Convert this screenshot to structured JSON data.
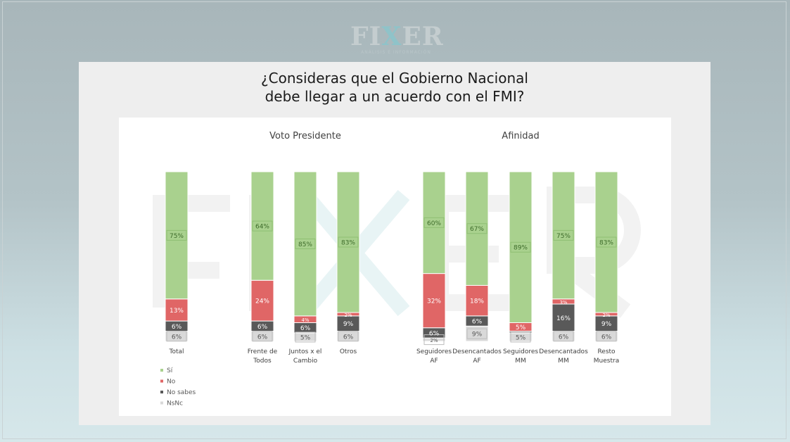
{
  "logo": {
    "text_a": "FI",
    "text_x": "X",
    "text_b": "ER",
    "subtitle": "ANÁLISIS E INFORMACIÓN"
  },
  "title_lines": [
    "¿Consideras que el Gobierno Nacional",
    "debe llegar a un acuerdo con el FMI?"
  ],
  "colors": {
    "si": "#a9d18e",
    "no": "#e06666",
    "no_sabes": "#595959",
    "nsnc": "#d9d9d9"
  },
  "chart_data": {
    "type": "bar",
    "stacked": true,
    "title": "¿Consideras que el Gobierno Nacional debe llegar a un acuerdo con el FMI?",
    "groups": [
      {
        "label": "",
        "categories": [
          0
        ]
      },
      {
        "label": "Voto Presidente",
        "categories": [
          1,
          2,
          3
        ]
      },
      {
        "label": "Afinidad",
        "categories": [
          4,
          5,
          6,
          7,
          8
        ]
      }
    ],
    "categories": [
      [
        "Total"
      ],
      [
        "Frente de",
        "Todos"
      ],
      [
        "Juntos x el",
        "Cambio"
      ],
      [
        "Otros"
      ],
      [
        "Seguidores",
        "AF"
      ],
      [
        "Desencantados",
        "AF"
      ],
      [
        "Seguidores",
        "MM"
      ],
      [
        "Desencantados",
        "MM"
      ],
      [
        "Resto",
        "Muestra"
      ]
    ],
    "series": [
      {
        "name": "Sí",
        "key": "si",
        "values": [
          75,
          64,
          85,
          83,
          60,
          67,
          89,
          75,
          83
        ],
        "labels": [
          "75%",
          "64%",
          "85%",
          "83%",
          "60%",
          "67%",
          "89%",
          "75%",
          "83%"
        ]
      },
      {
        "name": "No",
        "key": "no",
        "values": [
          13,
          24,
          4,
          2,
          32,
          18,
          5,
          3,
          2
        ],
        "labels": [
          "13%",
          "24%",
          "4%",
          "2%",
          "32%",
          "18%",
          "5%",
          "3%",
          "2%"
        ]
      },
      {
        "name": "No sabes",
        "key": "no_sabes",
        "values": [
          6,
          6,
          6,
          9,
          6,
          6,
          1,
          16,
          9
        ],
        "labels": [
          "6%",
          "6%",
          "6%",
          "9%",
          "6%",
          "6%",
          "",
          "16%",
          "9%"
        ]
      },
      {
        "name": "NsNc",
        "key": "nsnc",
        "values": [
          6,
          6,
          5,
          6,
          2,
          9,
          5,
          6,
          6
        ],
        "labels": [
          "6%",
          "6%",
          "5%",
          "6%",
          "2%",
          "9%",
          "5%",
          "6%",
          "6%"
        ]
      }
    ],
    "ylim": [
      0,
      100
    ],
    "legend": "bottom-left",
    "grid": false
  }
}
